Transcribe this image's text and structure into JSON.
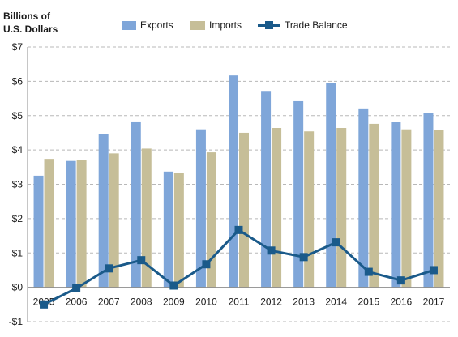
{
  "chart_data": {
    "type": "bar",
    "ylabel": "Billions of U.S. Dollars",
    "ylabel_lines": [
      "Billions of",
      "U.S. Dollars"
    ],
    "categories": [
      "2005",
      "2006",
      "2007",
      "2008",
      "2009",
      "2010",
      "2011",
      "2012",
      "2013",
      "2014",
      "2015",
      "2016",
      "2017"
    ],
    "series": [
      {
        "name": "Exports",
        "kind": "bar",
        "color": "#7fa6d9",
        "values": [
          3.25,
          3.68,
          4.47,
          4.83,
          3.37,
          4.6,
          6.17,
          5.72,
          5.42,
          5.96,
          5.21,
          4.82,
          5.08
        ]
      },
      {
        "name": "Imports",
        "kind": "bar",
        "color": "#c6be98",
        "values": [
          3.74,
          3.71,
          3.9,
          4.04,
          3.32,
          3.93,
          4.5,
          4.64,
          4.54,
          4.64,
          4.76,
          4.6,
          4.58
        ]
      },
      {
        "name": "Trade Balance",
        "kind": "line",
        "color": "#1a5a8a",
        "values": [
          -0.5,
          -0.03,
          0.55,
          0.79,
          0.05,
          0.67,
          1.67,
          1.07,
          0.88,
          1.31,
          0.45,
          0.2,
          0.5
        ]
      }
    ],
    "yticks": [
      -1,
      0,
      1,
      2,
      3,
      4,
      5,
      6,
      7
    ],
    "ytick_labels": [
      "-$1",
      "$0",
      "$1",
      "$2",
      "$3",
      "$4",
      "$5",
      "$6",
      "$7"
    ],
    "ylim": [
      -1,
      7
    ],
    "grid": "horizontal dashed",
    "legend": "top"
  }
}
